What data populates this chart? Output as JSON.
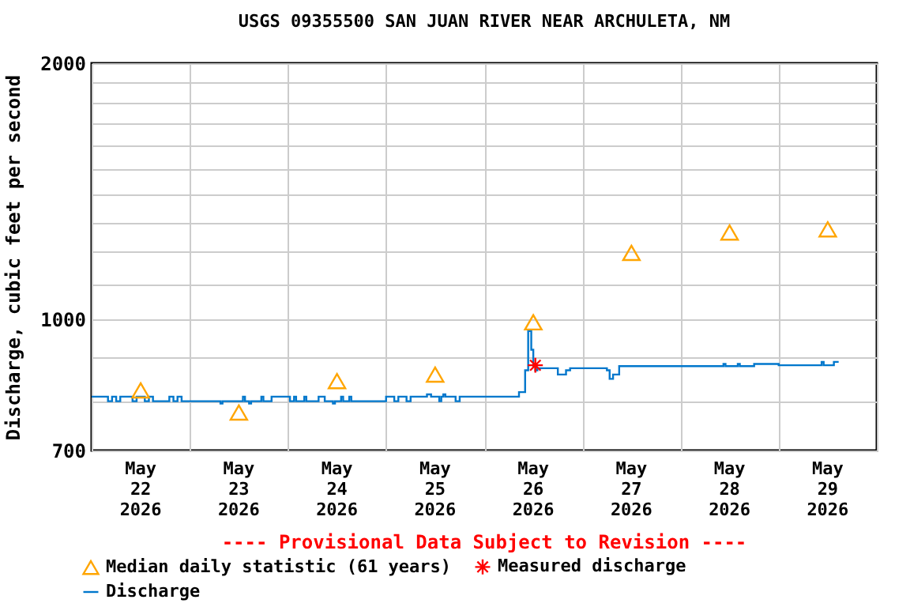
{
  "chart_data": {
    "type": "step",
    "title": "USGS 09355500 SAN JUAN RIVER NEAR ARCHULETA, NM",
    "ylabel": "Discharge, cubic feet per second",
    "annotations": [
      "---- Provisional Data Subject to Revision ----"
    ],
    "log": "y",
    "grid": true,
    "legend": "bottom",
    "xlim": [
      "2026-05-22T00:00",
      "2026-05-30T00:00"
    ],
    "xticks": [
      {
        "value": "2026-05-22T00:00",
        "label": null
      },
      {
        "value": "2026-05-22T12:00",
        "label": "May\n22\n2026"
      },
      {
        "value": "2026-05-23T00:00",
        "label": null
      },
      {
        "value": "2026-05-23T12:00",
        "label": "May\n23\n2026"
      },
      {
        "value": "2026-05-24T00:00",
        "label": null
      },
      {
        "value": "2026-05-24T12:00",
        "label": "May\n24\n2026"
      },
      {
        "value": "2026-05-25T00:00",
        "label": null
      },
      {
        "value": "2026-05-25T12:00",
        "label": "May\n25\n2026"
      },
      {
        "value": "2026-05-26T00:00",
        "label": null
      },
      {
        "value": "2026-05-26T12:00",
        "label": "May\n26\n2026"
      },
      {
        "value": "2026-05-27T00:00",
        "label": null
      },
      {
        "value": "2026-05-27T12:00",
        "label": "May\n27\n2026"
      },
      {
        "value": "2026-05-28T00:00",
        "label": null
      },
      {
        "value": "2026-05-28T12:00",
        "label": "May\n28\n2026"
      },
      {
        "value": "2026-05-29T00:00",
        "label": null
      },
      {
        "value": "2026-05-29T12:00",
        "label": "May\n29\n2026"
      },
      {
        "value": "2026-05-30T00:00",
        "label": null
      }
    ],
    "ylim": [
      700,
      2000
    ],
    "yticks": [
      700,
      {
        "value": 800,
        "label": null
      },
      {
        "value": 900,
        "label": null
      },
      1000,
      {
        "value": 1100,
        "label": null
      },
      {
        "value": 1200,
        "label": null
      },
      {
        "value": 1300,
        "label": null
      },
      {
        "value": 1400,
        "label": null
      },
      {
        "value": 1500,
        "label": null
      },
      {
        "value": 1600,
        "label": null
      },
      {
        "value": 1700,
        "label": null
      },
      {
        "value": 1800,
        "label": null
      },
      {
        "value": 1900,
        "label": null
      },
      2000
    ],
    "series": [
      {
        "name": "Median daily statistic (61 years)",
        "type": "scatter",
        "marker": "triangle",
        "color": "#ffa500",
        "x": [
          "2026-05-22T12:00",
          "2026-05-23T12:00",
          "2026-05-24T12:00",
          "2026-05-25T12:00",
          "2026-05-26T12:00",
          "2026-05-27T12:00",
          "2026-05-28T12:00",
          "2026-05-29T12:00"
        ],
        "values": [
          824,
          776,
          845,
          860,
          991,
          1196,
          1264,
          1275
        ]
      },
      {
        "name": "Measured discharge",
        "type": "scatter",
        "marker": "cross",
        "color": "#ff0000",
        "x": [
          "2026-05-26T12:30"
        ],
        "values": [
          882
        ]
      },
      {
        "name": "Discharge",
        "color": "#0077cc",
        "x": [
          "2026-05-22T00:00",
          "2026-05-22T04:00",
          "2026-05-22T05:00",
          "2026-05-22T06:00",
          "2026-05-22T07:00",
          "2026-05-22T10:00",
          "2026-05-22T11:00",
          "2026-05-22T13:00",
          "2026-05-22T14:00",
          "2026-05-22T15:00",
          "2026-05-22T19:00",
          "2026-05-22T20:00",
          "2026-05-22T21:00",
          "2026-05-22T22:00",
          "2026-05-23T07:30",
          "2026-05-23T08:00",
          "2026-05-23T13:00",
          "2026-05-23T13:30",
          "2026-05-23T14:30",
          "2026-05-23T15:00",
          "2026-05-23T17:30",
          "2026-05-23T18:00",
          "2026-05-23T20:00",
          "2026-05-24T00:30",
          "2026-05-24T01:30",
          "2026-05-24T02:00",
          "2026-05-24T04:00",
          "2026-05-24T04:30",
          "2026-05-24T07:30",
          "2026-05-24T09:00",
          "2026-05-24T11:00",
          "2026-05-24T11:30",
          "2026-05-24T13:00",
          "2026-05-24T13:30",
          "2026-05-24T15:00",
          "2026-05-24T15:30",
          "2026-05-25T00:00",
          "2026-05-25T02:00",
          "2026-05-25T03:00",
          "2026-05-25T05:00",
          "2026-05-25T06:00",
          "2026-05-25T10:00",
          "2026-05-25T11:00",
          "2026-05-25T13:00",
          "2026-05-25T13:30",
          "2026-05-25T14:00",
          "2026-05-25T14:30",
          "2026-05-25T17:00",
          "2026-05-25T18:00",
          "2026-05-26T08:30",
          "2026-05-26T10:00",
          "2026-05-26T10:45",
          "2026-05-26T11:30",
          "2026-05-26T12:00",
          "2026-05-26T12:30",
          "2026-05-26T13:00",
          "2026-05-26T18:00",
          "2026-05-26T20:00",
          "2026-05-26T21:00",
          "2026-05-27T06:00",
          "2026-05-27T06:40",
          "2026-05-27T07:30",
          "2026-05-27T09:00",
          "2026-05-28T10:30",
          "2026-05-28T11:00",
          "2026-05-28T14:00",
          "2026-05-28T14:30",
          "2026-05-28T18:00",
          "2026-05-29T00:00",
          "2026-05-29T10:30",
          "2026-05-29T11:00",
          "2026-05-29T13:30",
          "2026-05-29T14:40"
        ],
        "values": [
          810,
          800,
          810,
          800,
          810,
          800,
          810,
          800,
          810,
          800,
          810,
          800,
          810,
          800,
          795,
          800,
          810,
          800,
          795,
          800,
          810,
          800,
          810,
          800,
          810,
          800,
          810,
          800,
          810,
          800,
          795,
          800,
          810,
          800,
          810,
          800,
          810,
          800,
          810,
          800,
          810,
          815,
          810,
          800,
          810,
          815,
          810,
          800,
          810,
          820,
          870,
          968,
          920,
          880,
          870,
          875,
          860,
          870,
          875,
          870,
          850,
          860,
          880,
          885,
          880,
          885,
          880,
          885,
          882,
          890,
          882,
          890,
          890
        ]
      }
    ]
  }
}
